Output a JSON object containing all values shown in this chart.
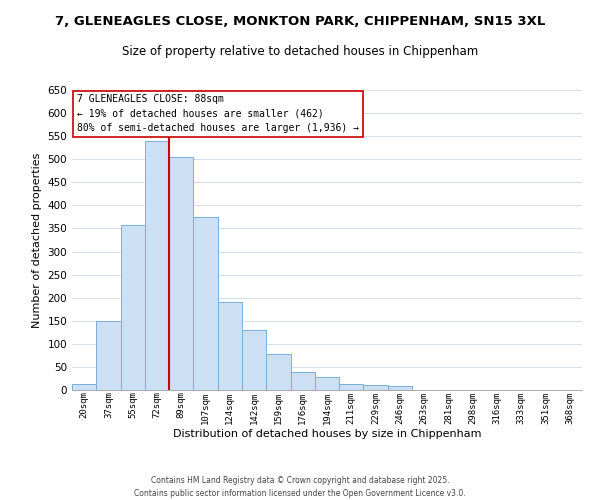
{
  "title": "7, GLENEAGLES CLOSE, MONKTON PARK, CHIPPENHAM, SN15 3XL",
  "subtitle": "Size of property relative to detached houses in Chippenham",
  "xlabel": "Distribution of detached houses by size in Chippenham",
  "ylabel": "Number of detached properties",
  "bar_color": "#ccdff5",
  "bar_edge_color": "#7ab0d8",
  "categories": [
    "20sqm",
    "37sqm",
    "55sqm",
    "72sqm",
    "89sqm",
    "107sqm",
    "124sqm",
    "142sqm",
    "159sqm",
    "176sqm",
    "194sqm",
    "211sqm",
    "229sqm",
    "246sqm",
    "263sqm",
    "281sqm",
    "298sqm",
    "316sqm",
    "333sqm",
    "351sqm",
    "368sqm"
  ],
  "values": [
    13,
    150,
    358,
    540,
    505,
    375,
    190,
    130,
    79,
    40,
    28,
    13,
    10,
    8,
    0,
    0,
    0,
    0,
    0,
    0,
    0
  ],
  "ylim": [
    0,
    650
  ],
  "yticks": [
    0,
    50,
    100,
    150,
    200,
    250,
    300,
    350,
    400,
    450,
    500,
    550,
    600,
    650
  ],
  "vline_x": 3.5,
  "vline_color": "#cc0000",
  "annotation_title": "7 GLENEAGLES CLOSE: 88sqm",
  "annotation_line1": "← 19% of detached houses are smaller (462)",
  "annotation_line2": "80% of semi-detached houses are larger (1,936) →",
  "footer1": "Contains HM Land Registry data © Crown copyright and database right 2025.",
  "footer2": "Contains public sector information licensed under the Open Government Licence v3.0.",
  "bg_color": "#ffffff",
  "grid_color": "#d0d8e8"
}
